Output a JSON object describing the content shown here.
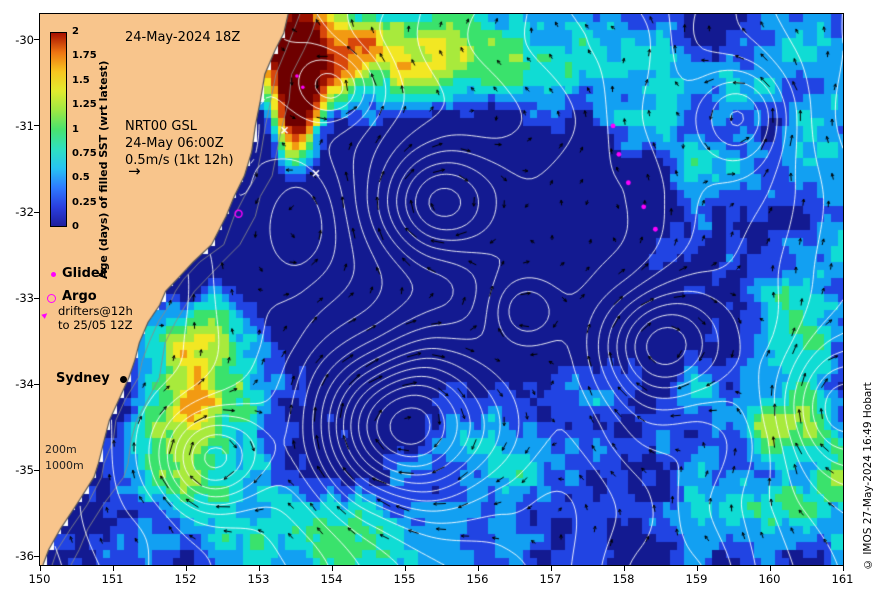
{
  "figure": {
    "title": "24-May-2024 18Z",
    "credit": "© IMOS 27-May-2024 16:49 Hobart",
    "bg": "#ffffff"
  },
  "info_box": {
    "model": "NRT00 GSL",
    "valid": "24-May 06:00Z",
    "scale": "0.5m/s (1kt 12h)"
  },
  "icons": {
    "scale_arrow": "→",
    "drifter_marker": "▸"
  },
  "colorbar": {
    "label": "Age (days) of filled SST (wrt latest)",
    "ticks": [
      "2",
      "1.75",
      "1.5",
      "1.25",
      "1",
      "0.75",
      "0.5",
      "0.25",
      "0"
    ],
    "stops_bottom_to_top": [
      "#1f1f9e",
      "#2a3fe0",
      "#2e7bff",
      "#27c4f2",
      "#2fe0c0",
      "#4ae36e",
      "#9fe843",
      "#e2ea2e",
      "#f7c51f",
      "#ee7412",
      "#a81000"
    ]
  },
  "legend": {
    "glider": "Glider",
    "argo": "Argo",
    "drifters_line1": "drifters@12h",
    "drifters_line2": "to 25/05 12Z",
    "marker_color": "#ff00ff"
  },
  "city": {
    "name": "Sydney"
  },
  "isobaths": {
    "labels": [
      "200m",
      "1000m"
    ],
    "color": "#8a8a8a"
  },
  "axes": {
    "x_ticks": [
      "150",
      "151",
      "152",
      "153",
      "154",
      "155",
      "156",
      "157",
      "158",
      "159",
      "160",
      "161"
    ],
    "y_ticks": [
      "-30",
      "-31",
      "-32",
      "-33",
      "-34",
      "-35",
      "-36"
    ],
    "lon_range": [
      150,
      161
    ],
    "lat_top": -29.7,
    "lat_bottom": -36.1
  },
  "map": {
    "land_color": "#f8c58c",
    "coast_color": "#555555",
    "contour_color": "#ffffff",
    "arrow_color": "#000000",
    "ocean_palette": [
      "#131a91",
      "#2144e3",
      "#12a0f2",
      "#10dcd4",
      "#3ae26c",
      "#a8ea3c",
      "#f2e723",
      "#f29a12",
      "#d8470b",
      "#9c1200",
      "#6e0000"
    ],
    "coastline": [
      [
        153.4,
        -29.7
      ],
      [
        153.34,
        -29.92
      ],
      [
        153.22,
        -30.12
      ],
      [
        153.08,
        -30.4
      ],
      [
        153.02,
        -30.7
      ],
      [
        152.95,
        -31.0
      ],
      [
        152.9,
        -31.3
      ],
      [
        152.8,
        -31.58
      ],
      [
        152.66,
        -31.82
      ],
      [
        152.55,
        -32.05
      ],
      [
        152.35,
        -32.38
      ],
      [
        152.1,
        -32.58
      ],
      [
        151.88,
        -32.78
      ],
      [
        151.72,
        -32.92
      ],
      [
        151.64,
        -33.08
      ],
      [
        151.48,
        -33.28
      ],
      [
        151.36,
        -33.52
      ],
      [
        151.3,
        -33.72
      ],
      [
        151.22,
        -33.92
      ],
      [
        151.08,
        -34.18
      ],
      [
        150.95,
        -34.42
      ],
      [
        150.88,
        -34.65
      ],
      [
        150.8,
        -34.92
      ],
      [
        150.74,
        -35.08
      ],
      [
        150.5,
        -35.4
      ],
      [
        150.28,
        -35.68
      ],
      [
        150.12,
        -35.92
      ],
      [
        150.04,
        -36.1
      ]
    ],
    "observations": {
      "drifters": [
        [
          157.85,
          -31.0
        ],
        [
          157.93,
          -31.33
        ],
        [
          158.06,
          -31.66
        ],
        [
          158.27,
          -31.94
        ],
        [
          158.43,
          -32.2
        ]
      ],
      "argo": [
        [
          152.72,
          -32.02
        ]
      ],
      "glider": [
        [
          153.52,
          -30.42
        ],
        [
          153.6,
          -30.55
        ]
      ],
      "white_x": [
        [
          153.35,
          -31.05
        ],
        [
          153.78,
          -31.55
        ]
      ]
    }
  }
}
